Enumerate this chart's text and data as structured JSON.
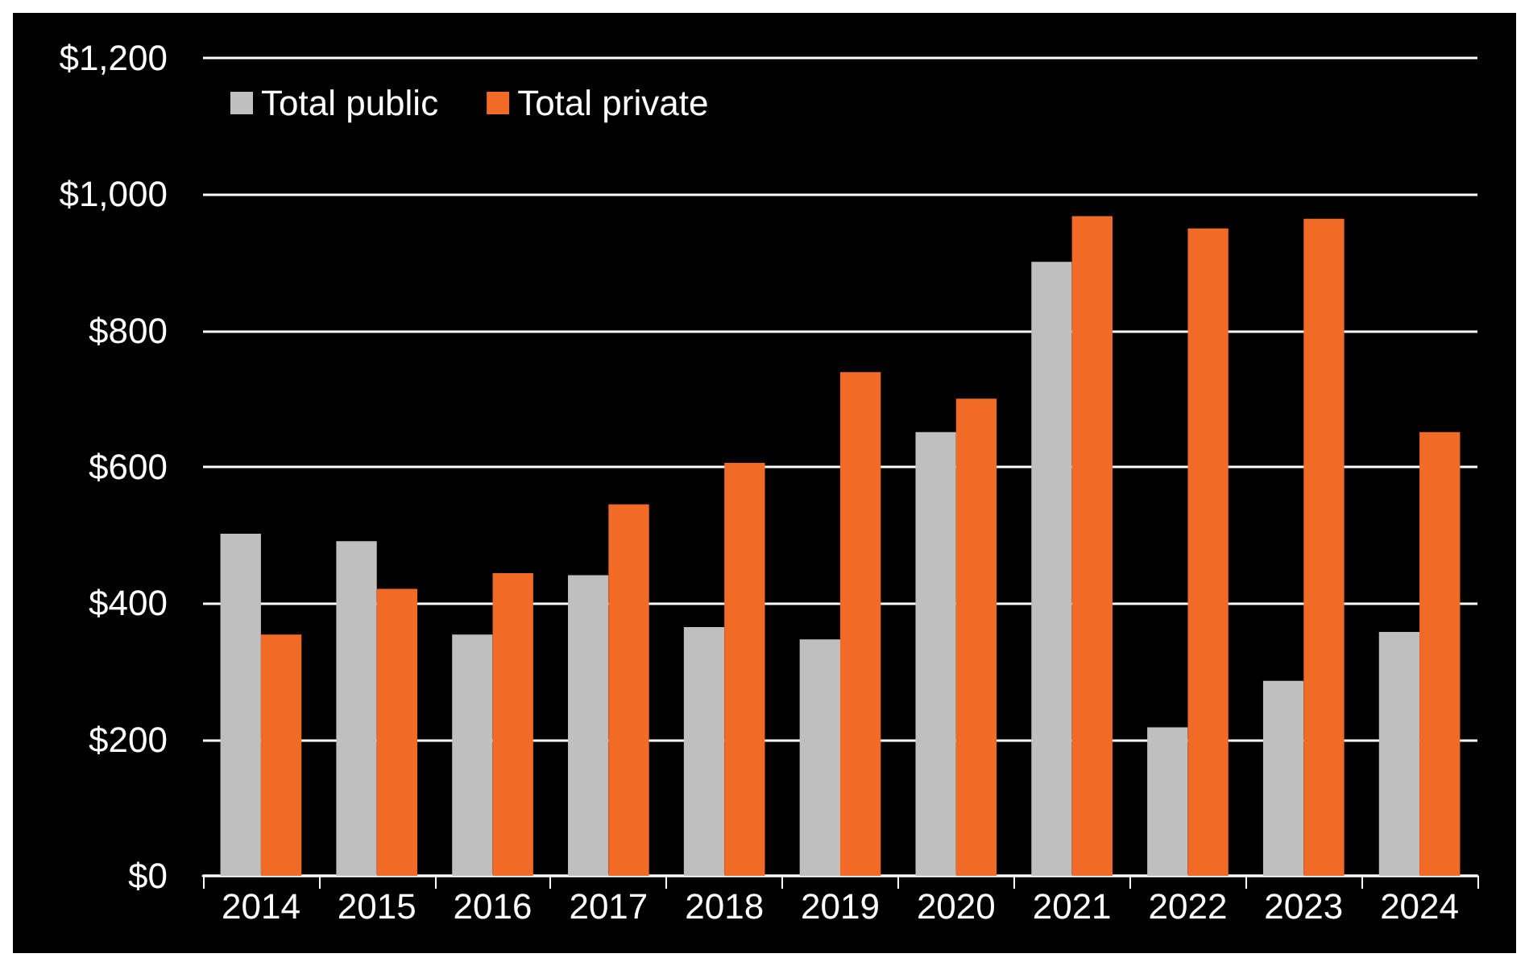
{
  "chart_data": {
    "type": "bar",
    "categories": [
      "2014",
      "2015",
      "2016",
      "2017",
      "2018",
      "2019",
      "2020",
      "2021",
      "2022",
      "2023",
      "2024"
    ],
    "series": [
      {
        "name": "Total public",
        "color": "#bfbfbf",
        "values": [
          502,
          491,
          354,
          441,
          365,
          347,
          651,
          901,
          218,
          286,
          358
        ]
      },
      {
        "name": "Total private",
        "color": "#f26b26",
        "values": [
          354,
          421,
          444,
          545,
          606,
          739,
          700,
          968,
          950,
          964,
          651
        ]
      }
    ],
    "ylim": [
      0,
      1200
    ],
    "yticks": [
      {
        "value": 0,
        "label": "$0"
      },
      {
        "value": 200,
        "label": "$200"
      },
      {
        "value": 400,
        "label": "$400"
      },
      {
        "value": 600,
        "label": "$600"
      },
      {
        "value": 800,
        "label": "$800"
      },
      {
        "value": 1000,
        "label": "$1,000"
      },
      {
        "value": 1200,
        "label": "$1,200"
      }
    ],
    "grid": "y",
    "legend": "top left"
  }
}
